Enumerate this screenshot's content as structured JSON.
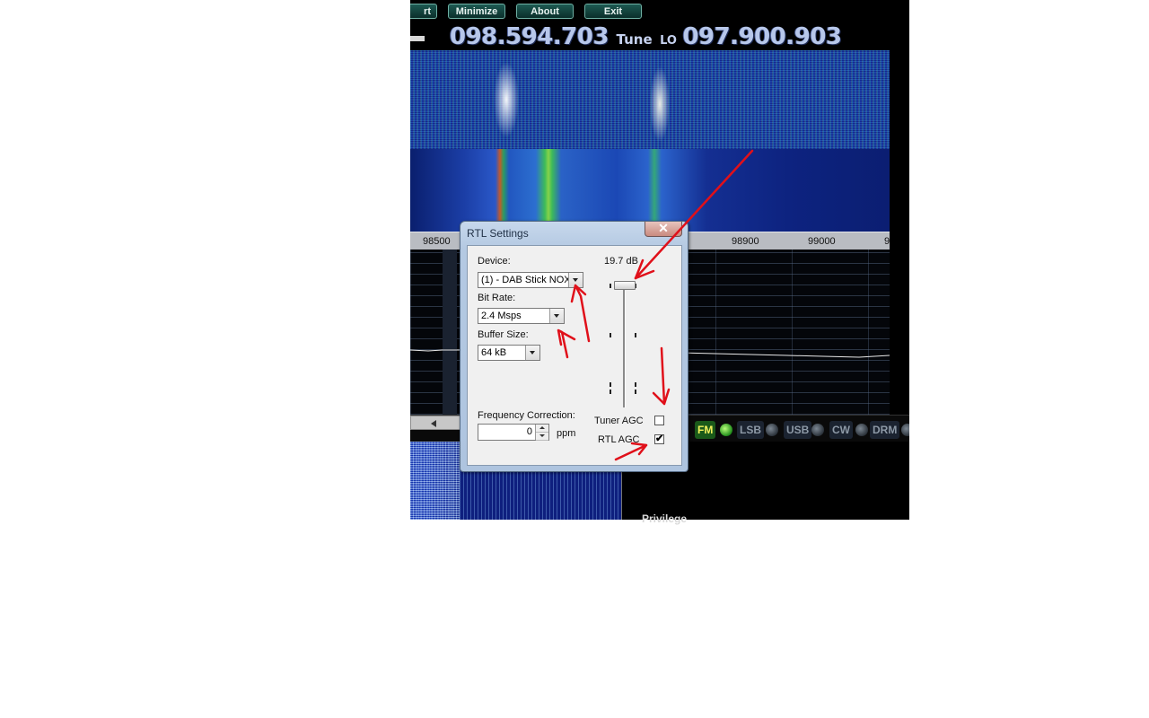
{
  "app": {
    "top_buttons": {
      "start_partial": "rt",
      "minimize": "Minimize",
      "about": "About",
      "exit": "Exit"
    },
    "frequency": {
      "tuned": "098.594.703",
      "tune_label": "Tune",
      "lo_label": "LO",
      "lo_value": "097.900.903"
    },
    "ruler_labels": [
      "98500",
      "98900",
      "99000",
      "9"
    ],
    "modes": {
      "fm": "FM",
      "lsb": "LSB",
      "usb": "USB",
      "cw": "CW",
      "drm": "DRM"
    },
    "partial_text": "Privilege"
  },
  "dialog": {
    "title": "RTL Settings",
    "close_glyph": "✕",
    "device_label": "Device:",
    "device_value": "(1) - DAB Stick NOX",
    "bitrate_label": "Bit Rate:",
    "bitrate_value": "2.4 Msps",
    "buffer_label": "Buffer Size:",
    "buffer_value": "64 kB",
    "gain_readout": "19.7 dB",
    "gain_level_fraction": 0.98,
    "freq_correction_label": "Frequency Correction:",
    "freq_correction_value": "0",
    "ppm_label": "ppm",
    "tuner_agc_label": "Tuner AGC",
    "tuner_agc_checked": false,
    "rtl_agc_label": "RTL AGC",
    "rtl_agc_checked": true,
    "check_glyph": "✔"
  },
  "annotation_color": "#e0101a"
}
